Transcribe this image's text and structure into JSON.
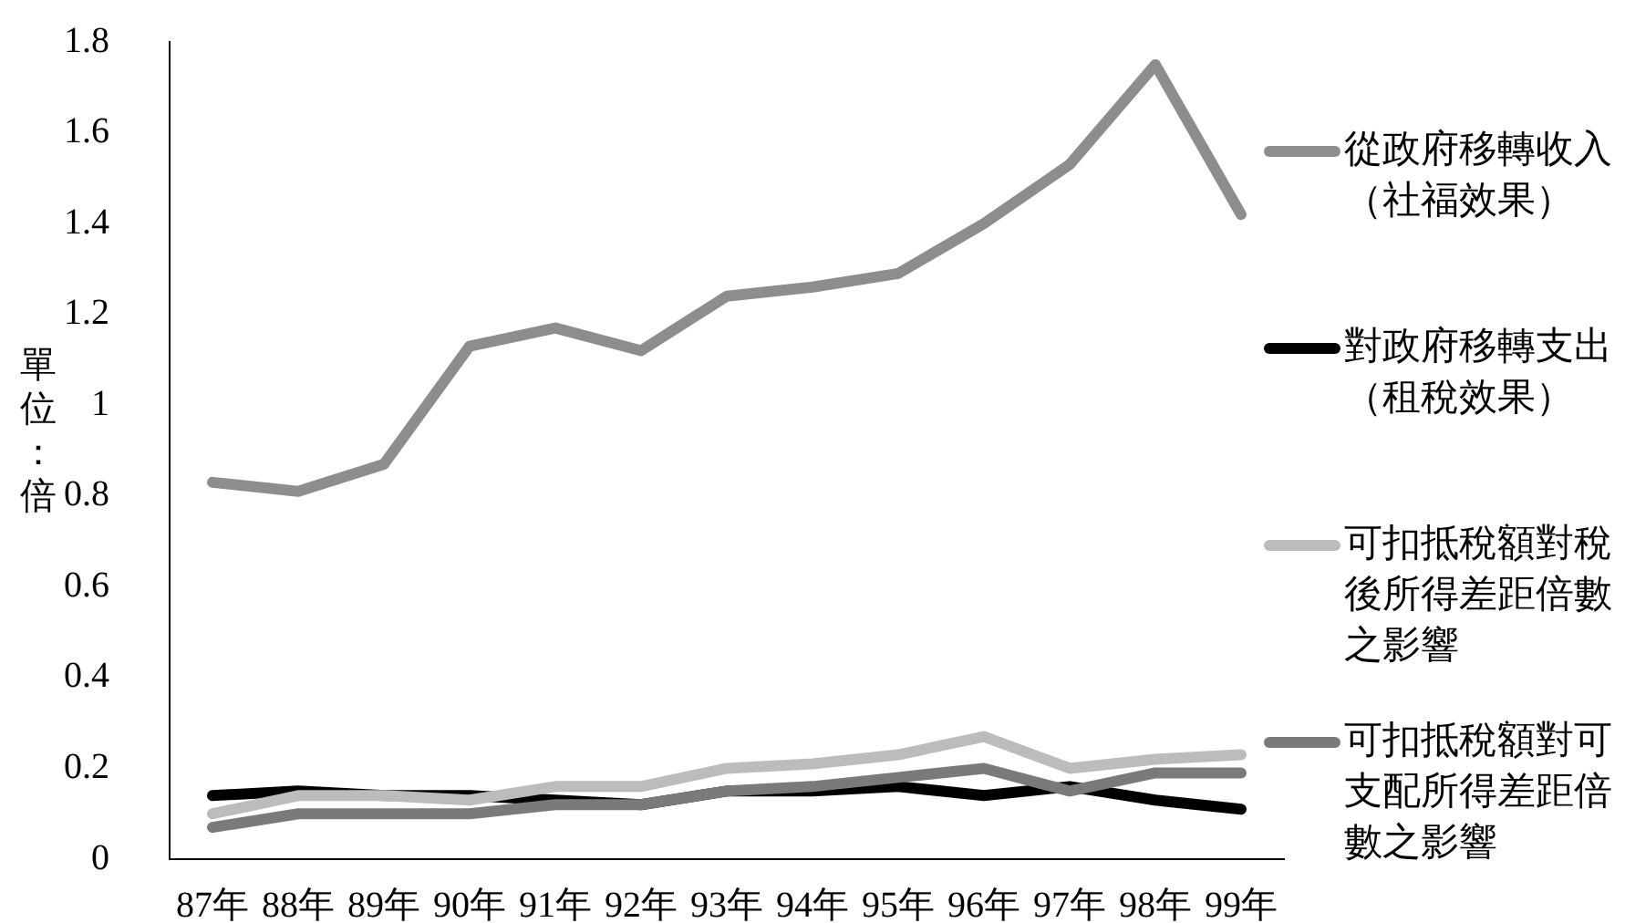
{
  "chart_data": {
    "type": "line",
    "ylabel": "單位：倍",
    "categories": [
      "87年",
      "88年",
      "89年",
      "90年",
      "91年",
      "92年",
      "93年",
      "94年",
      "95年",
      "96年",
      "97年",
      "98年",
      "99年"
    ],
    "series": [
      {
        "name": "從政府移轉收入（社福效果）",
        "color": "#8d8d8d",
        "values": [
          0.83,
          0.81,
          0.87,
          1.13,
          1.17,
          1.12,
          1.24,
          1.26,
          1.29,
          1.4,
          1.53,
          1.75,
          1.42
        ]
      },
      {
        "name": "對政府移轉支出（租稅效果）",
        "color": "#000000",
        "values": [
          0.14,
          0.15,
          0.14,
          0.14,
          0.13,
          0.12,
          0.15,
          0.15,
          0.16,
          0.14,
          0.16,
          0.13,
          0.11
        ]
      },
      {
        "name": "可扣抵稅額對稅後所得差距倍數之影響",
        "color": "#bcbcbc",
        "values": [
          0.1,
          0.14,
          0.14,
          0.13,
          0.16,
          0.16,
          0.2,
          0.21,
          0.23,
          0.27,
          0.2,
          0.22,
          0.23
        ]
      },
      {
        "name": "可扣抵稅額對可支配所得差距倍數之影響",
        "color": "#7a7a7a",
        "values": [
          0.07,
          0.1,
          0.1,
          0.1,
          0.12,
          0.12,
          0.15,
          0.16,
          0.18,
          0.2,
          0.15,
          0.19,
          0.19
        ]
      }
    ],
    "ylim": [
      0,
      1.8
    ],
    "yticks": [
      0,
      0.2,
      0.4,
      0.6,
      0.8,
      1,
      1.2,
      1.4,
      1.6,
      1.8
    ],
    "grid": false,
    "legend": "right",
    "marker": "none"
  }
}
